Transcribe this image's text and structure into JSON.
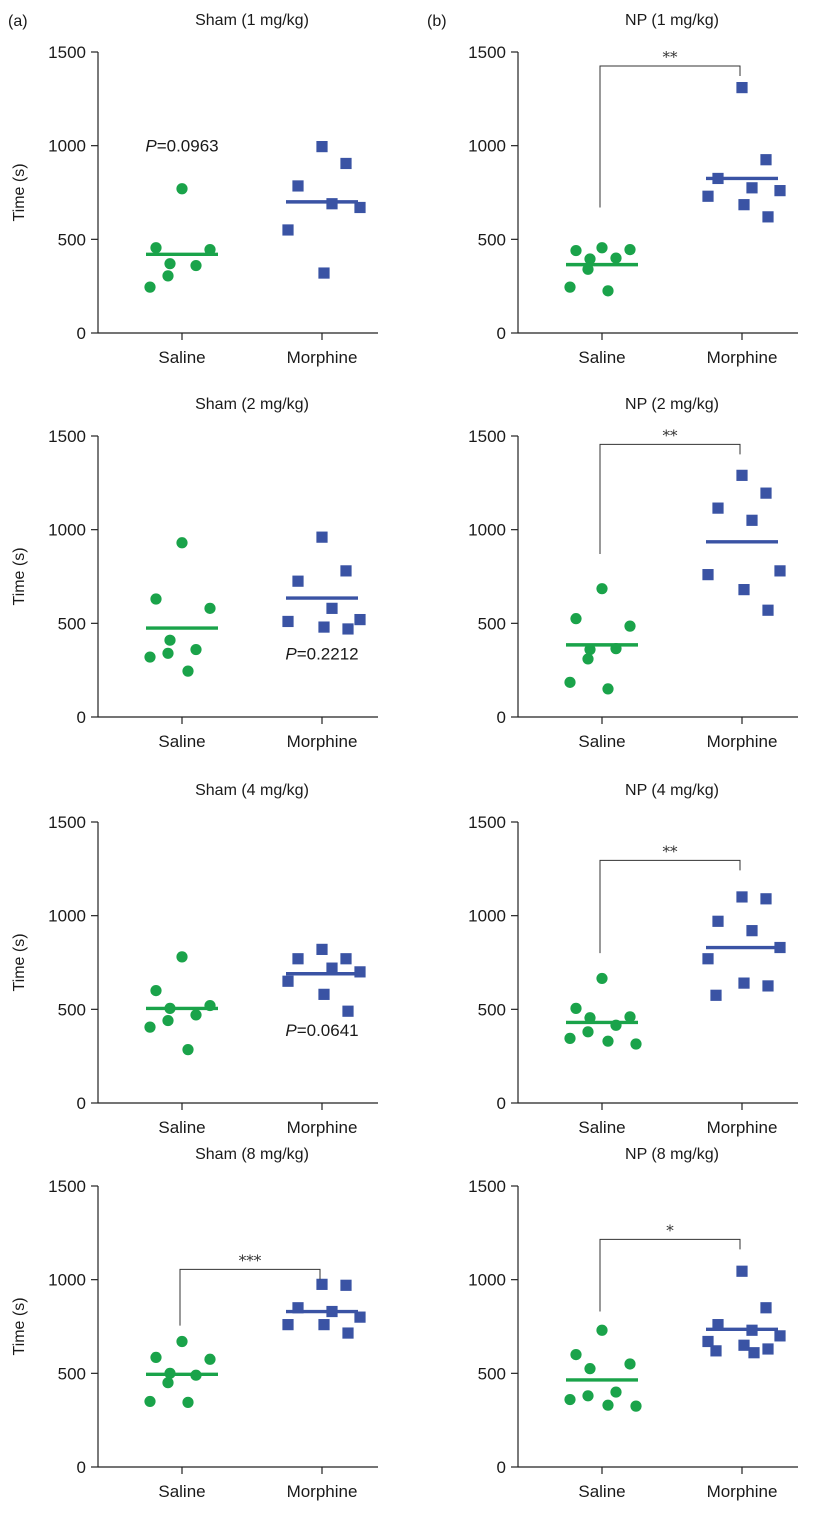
{
  "panel_tags": [
    "(a)",
    "(b)"
  ],
  "colors": {
    "saline": "#1aa34a",
    "morphine": "#3a53a4",
    "axis": "#222222"
  },
  "markers": {
    "saline": "circle",
    "morphine": "square"
  },
  "chart_data": [
    {
      "type": "scatter",
      "title": "Sham (1 mg/kg)",
      "tag": "(a)",
      "categories": [
        "Saline",
        "Morphine"
      ],
      "ylabel": "Time (s)",
      "ylim": [
        0,
        1500
      ],
      "yticks": [
        "0",
        "500",
        "1000",
        "1500"
      ],
      "series": [
        {
          "values": [
            770,
            455,
            445,
            370,
            360,
            305,
            245
          ],
          "mean": 420
        },
        {
          "values": [
            995,
            905,
            785,
            690,
            670,
            550,
            320
          ],
          "mean": 700
        }
      ],
      "annotation": {
        "type": "pvalue",
        "symbol": "P",
        "text": "=0.0963",
        "category": 0,
        "y": 1000
      }
    },
    {
      "type": "scatter",
      "title": "NP (1 mg/kg)",
      "tag": "(b)",
      "categories": [
        "Saline",
        "Morphine"
      ],
      "ylabel": "",
      "ylim": [
        0,
        1500
      ],
      "yticks": [
        "0",
        "500",
        "1000",
        "1500"
      ],
      "series": [
        {
          "values": [
            455,
            440,
            445,
            395,
            400,
            340,
            245,
            225
          ],
          "mean": 365
        },
        {
          "values": [
            1310,
            925,
            825,
            775,
            760,
            730,
            685,
            620
          ],
          "mean": 825
        }
      ],
      "annotation": {
        "type": "bracket",
        "stars": "**",
        "top": 1425,
        "base": 670
      }
    },
    {
      "type": "scatter",
      "title": "Sham (2 mg/kg)",
      "categories": [
        "Saline",
        "Morphine"
      ],
      "ylabel": "Time (s)",
      "ylim": [
        0,
        1500
      ],
      "yticks": [
        "0",
        "500",
        "1000",
        "1500"
      ],
      "series": [
        {
          "values": [
            930,
            630,
            580,
            410,
            360,
            340,
            320,
            245
          ],
          "mean": 475
        },
        {
          "values": [
            960,
            780,
            725,
            580,
            520,
            510,
            480,
            470
          ],
          "mean": 635
        }
      ],
      "annotation": {
        "type": "pvalue",
        "symbol": "P",
        "text": "=0.2212",
        "category": 1,
        "y": 340
      }
    },
    {
      "type": "scatter",
      "title": "NP (2 mg/kg)",
      "categories": [
        "Saline",
        "Morphine"
      ],
      "ylabel": "",
      "ylim": [
        0,
        1500
      ],
      "yticks": [
        "0",
        "500",
        "1000",
        "1500"
      ],
      "series": [
        {
          "values": [
            685,
            525,
            485,
            360,
            365,
            310,
            185,
            150
          ],
          "mean": 385
        },
        {
          "values": [
            1290,
            1195,
            1115,
            1050,
            780,
            760,
            680,
            570
          ],
          "mean": 935
        }
      ],
      "annotation": {
        "type": "bracket",
        "stars": "**",
        "top": 1455,
        "base": 870
      }
    },
    {
      "type": "scatter",
      "title": "Sham (4 mg/kg)",
      "categories": [
        "Saline",
        "Morphine"
      ],
      "ylabel": "Time (s)",
      "ylim": [
        0,
        1500
      ],
      "yticks": [
        "0",
        "500",
        "1000",
        "1500"
      ],
      "series": [
        {
          "values": [
            780,
            600,
            520,
            505,
            470,
            440,
            405,
            285
          ],
          "mean": 505
        },
        {
          "values": [
            820,
            770,
            770,
            720,
            700,
            650,
            580,
            490
          ],
          "mean": 690
        }
      ],
      "annotation": {
        "type": "pvalue",
        "symbol": "P",
        "text": "=0.0641",
        "category": 1,
        "y": 390
      }
    },
    {
      "type": "scatter",
      "title": "NP (4 mg/kg)",
      "categories": [
        "Saline",
        "Morphine"
      ],
      "ylabel": "",
      "ylim": [
        0,
        1500
      ],
      "yticks": [
        "0",
        "500",
        "1000",
        "1500"
      ],
      "series": [
        {
          "values": [
            665,
            505,
            460,
            455,
            415,
            380,
            345,
            330,
            315
          ],
          "mean": 430
        },
        {
          "values": [
            1100,
            1090,
            970,
            920,
            830,
            770,
            640,
            625,
            575
          ],
          "mean": 830
        }
      ],
      "annotation": {
        "type": "bracket",
        "stars": "**",
        "top": 1295,
        "base": 800
      }
    },
    {
      "type": "scatter",
      "title": "Sham (8 mg/kg)",
      "categories": [
        "Saline",
        "Morphine"
      ],
      "ylabel": "Time (s)",
      "ylim": [
        0,
        1500
      ],
      "yticks": [
        "0",
        "500",
        "1000",
        "1500"
      ],
      "series": [
        {
          "values": [
            670,
            585,
            575,
            500,
            490,
            450,
            350,
            345
          ],
          "mean": 495
        },
        {
          "values": [
            975,
            970,
            850,
            830,
            800,
            760,
            760,
            715
          ],
          "mean": 830
        }
      ],
      "annotation": {
        "type": "bracket",
        "stars": "***",
        "top": 1055,
        "base": 755
      }
    },
    {
      "type": "scatter",
      "title": "NP (8 mg/kg)",
      "categories": [
        "Saline",
        "Morphine"
      ],
      "ylabel": "",
      "ylim": [
        0,
        1500
      ],
      "yticks": [
        "0",
        "500",
        "1000",
        "1500"
      ],
      "series": [
        {
          "values": [
            730,
            600,
            550,
            525,
            400,
            380,
            360,
            330,
            325
          ],
          "mean": 465
        },
        {
          "values": [
            1045,
            850,
            760,
            730,
            700,
            670,
            650,
            630,
            620,
            610
          ],
          "mean": 735
        }
      ],
      "annotation": {
        "type": "bracket",
        "stars": "*",
        "top": 1215,
        "base": 830
      }
    }
  ]
}
